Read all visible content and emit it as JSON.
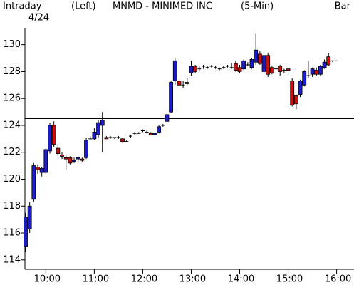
{
  "chart_data": {
    "type": "candlestick",
    "period_label": "Intraday",
    "date": "4/24",
    "axis_side": "(Left)",
    "title": "MNMD - MINIMED INC",
    "interval": "(5-Min)",
    "style_label": "Bar",
    "up_color": "#1c1cc8",
    "down_color": "#c81010",
    "ylim": [
      113.3,
      131.2
    ],
    "yticks": [
      114,
      116,
      118,
      120,
      122,
      124,
      126,
      128,
      130
    ],
    "reference_line": 124.5,
    "categories": [
      null,
      null,
      null,
      null,
      null,
      "10:00",
      null,
      null,
      null,
      null,
      null,
      null,
      null,
      null,
      null,
      null,
      null,
      "11:00",
      null,
      null,
      null,
      null,
      null,
      null,
      null,
      null,
      null,
      null,
      null,
      "12:00",
      null,
      null,
      null,
      null,
      null,
      null,
      null,
      null,
      null,
      null,
      null,
      "13:00",
      null,
      null,
      null,
      null,
      null,
      null,
      null,
      null,
      null,
      null,
      null,
      "14:00",
      null,
      null,
      null,
      null,
      null,
      null,
      null,
      null,
      null,
      null,
      null,
      "15:00",
      null,
      null,
      null,
      null,
      null,
      null,
      null,
      null,
      null,
      null,
      null,
      "16:00"
    ],
    "open": [
      115.0,
      116.3,
      118.5,
      120.9,
      120.5,
      120.5,
      122.1,
      124.0,
      122.3,
      121.8,
      121.6,
      121.6,
      121.3,
      121.5,
      121.5,
      121.6,
      123.0,
      123.0,
      123.3,
      124.0,
      123.1,
      123.1,
      123.1,
      123.1,
      123.0,
      122.8,
      123.2,
      123.4,
      123.4,
      123.6,
      123.5,
      123.4,
      123.3,
      123.5,
      124.0,
      124.3,
      125.0,
      127.3,
      127.3,
      127.0,
      127.1,
      127.9,
      128.4,
      128.2,
      128.4,
      128.3,
      128.4,
      128.3,
      128.2,
      128.3,
      128.4,
      128.3,
      128.6,
      128.3,
      128.2,
      128.5,
      128.3,
      128.7,
      129.3,
      128.0,
      129.2,
      128.3,
      128.2,
      128.4,
      128.1,
      128.2,
      127.3,
      126.2,
      126.3,
      127.0,
      127.7,
      127.8,
      128.1,
      127.8,
      128.3,
      129.1,
      128.8,
      128.8
    ],
    "high": [
      117.5,
      118.3,
      121.2,
      121.1,
      120.9,
      122.3,
      124.2,
      124.3,
      122.6,
      122.0,
      121.8,
      121.7,
      121.6,
      121.7,
      121.6,
      123.1,
      123.2,
      123.8,
      124.4,
      125.0,
      123.2,
      123.2,
      123.1,
      123.2,
      123.1,
      122.9,
      123.3,
      123.5,
      123.5,
      123.7,
      123.6,
      123.5,
      123.4,
      124.0,
      124.1,
      124.9,
      127.3,
      129.0,
      127.4,
      127.3,
      127.5,
      128.8,
      128.5,
      128.4,
      128.5,
      128.4,
      128.5,
      128.4,
      128.3,
      128.4,
      128.5,
      128.6,
      128.8,
      128.5,
      128.9,
      128.7,
      129.0,
      130.8,
      129.5,
      129.3,
      129.4,
      128.4,
      128.4,
      128.5,
      128.2,
      128.3,
      127.5,
      126.3,
      127.4,
      128.1,
      128.8,
      128.3,
      128.3,
      128.5,
      128.9,
      129.4,
      128.8,
      128.8
    ],
    "low": [
      114.6,
      116.0,
      118.3,
      120.4,
      120.2,
      120.4,
      121.9,
      122.4,
      121.7,
      121.5,
      120.7,
      121.1,
      121.2,
      121.3,
      121.3,
      121.5,
      122.9,
      122.9,
      123.1,
      122.0,
      123.0,
      123.0,
      123.0,
      123.0,
      122.7,
      122.8,
      123.1,
      123.3,
      123.4,
      123.5,
      123.4,
      123.3,
      123.2,
      123.4,
      123.9,
      124.2,
      124.9,
      127.0,
      126.9,
      126.8,
      127.0,
      127.7,
      127.9,
      128.0,
      128.2,
      128.2,
      128.3,
      128.2,
      128.1,
      128.2,
      128.3,
      128.2,
      128.0,
      127.9,
      128.1,
      128.4,
      128.2,
      128.5,
      128.5,
      127.8,
      127.6,
      127.8,
      128.0,
      127.7,
      127.9,
      127.8,
      125.4,
      125.2,
      126.1,
      126.9,
      127.5,
      127.6,
      127.7,
      127.7,
      128.2,
      128.4,
      128.7,
      128.8
    ],
    "close": [
      117.2,
      118.0,
      121.0,
      120.7,
      120.8,
      122.2,
      124.0,
      122.6,
      121.9,
      121.7,
      121.5,
      121.2,
      121.4,
      121.6,
      121.4,
      122.9,
      123.0,
      123.5,
      124.2,
      124.4,
      123.0,
      123.1,
      123.1,
      123.1,
      122.8,
      122.8,
      123.2,
      123.4,
      123.4,
      123.6,
      123.5,
      123.3,
      123.4,
      123.9,
      124.0,
      124.8,
      127.2,
      128.8,
      127.0,
      127.0,
      127.2,
      128.4,
      128.0,
      128.2,
      128.4,
      128.3,
      128.4,
      128.3,
      128.2,
      128.3,
      128.4,
      128.3,
      128.1,
      128.0,
      128.8,
      128.5,
      128.9,
      129.6,
      128.6,
      129.2,
      127.8,
      127.9,
      128.2,
      128.0,
      128.1,
      128.1,
      125.5,
      125.6,
      127.3,
      128.0,
      127.7,
      128.2,
      127.8,
      128.4,
      128.7,
      128.5,
      128.8,
      128.8
    ]
  }
}
